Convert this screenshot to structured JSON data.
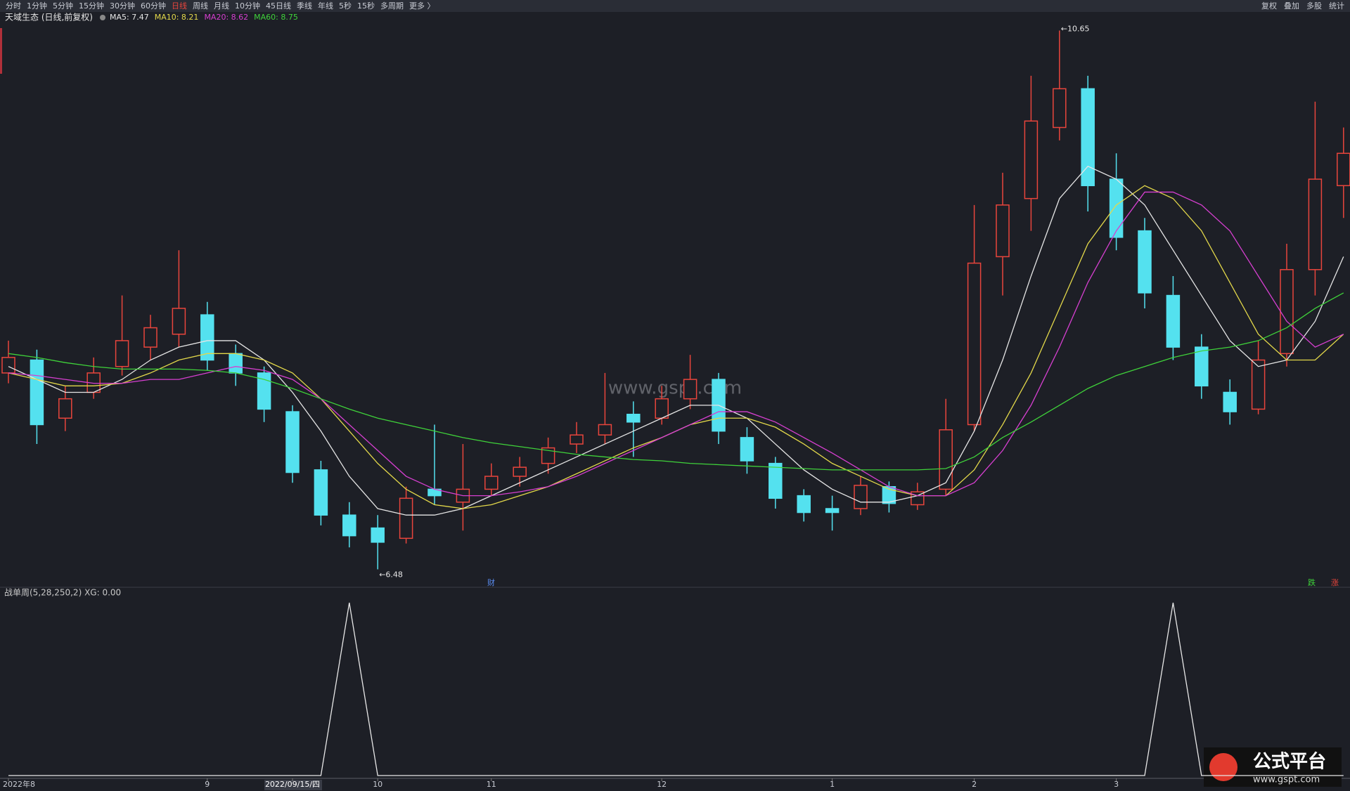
{
  "toolbar": {
    "items": [
      "分时",
      "1分钟",
      "5分钟",
      "15分钟",
      "30分钟",
      "60分钟",
      "日线",
      "周线",
      "月线",
      "10分钟",
      "45日线",
      "季线",
      "年线",
      "5秒",
      "15秒",
      "多周期",
      "更多 〉"
    ],
    "active": "日线",
    "right": [
      "复权",
      "叠加",
      "多股",
      "统计"
    ]
  },
  "chart_data": [
    {
      "type": "candlestick",
      "title": "天域生态 (日线,前复权)",
      "categories": [
        "2022年8",
        null,
        null,
        null,
        null,
        null,
        null,
        "9",
        null,
        null,
        "2022/09/15/四",
        null,
        null,
        "10",
        null,
        null,
        null,
        "11",
        null,
        null,
        null,
        null,
        null,
        "12",
        null,
        null,
        null,
        null,
        null,
        "1",
        null,
        null,
        null,
        null,
        "2",
        null,
        null,
        null,
        null,
        "3",
        null,
        null,
        null,
        null,
        null,
        null,
        null,
        null
      ],
      "candles": [
        [
          8.0,
          8.25,
          7.92,
          8.12
        ],
        [
          8.1,
          8.18,
          7.45,
          7.6
        ],
        [
          7.65,
          7.9,
          7.55,
          7.8
        ],
        [
          7.85,
          8.12,
          7.8,
          8.0
        ],
        [
          8.05,
          8.6,
          7.98,
          8.25
        ],
        [
          8.2,
          8.45,
          8.1,
          8.35
        ],
        [
          8.3,
          8.95,
          8.2,
          8.5
        ],
        [
          8.45,
          8.55,
          8.02,
          8.1
        ],
        [
          8.15,
          8.22,
          7.9,
          8.0
        ],
        [
          8.0,
          8.05,
          7.62,
          7.72
        ],
        [
          7.7,
          7.75,
          7.15,
          7.23
        ],
        [
          7.25,
          7.32,
          6.82,
          6.9
        ],
        [
          6.9,
          7.0,
          6.65,
          6.74
        ],
        [
          6.8,
          6.9,
          6.48,
          6.69
        ],
        [
          6.72,
          7.12,
          6.68,
          7.03
        ],
        [
          7.1,
          7.6,
          6.98,
          7.05
        ],
        [
          7.0,
          7.45,
          6.78,
          7.1
        ],
        [
          7.1,
          7.3,
          7.05,
          7.2
        ],
        [
          7.2,
          7.35,
          7.12,
          7.27
        ],
        [
          7.3,
          7.5,
          7.22,
          7.42
        ],
        [
          7.45,
          7.62,
          7.38,
          7.52
        ],
        [
          7.52,
          8.0,
          7.45,
          7.6
        ],
        [
          7.68,
          7.78,
          7.35,
          7.62
        ],
        [
          7.65,
          7.9,
          7.6,
          7.8
        ],
        [
          7.8,
          8.14,
          7.72,
          7.95
        ],
        [
          7.95,
          8.0,
          7.45,
          7.55
        ],
        [
          7.5,
          7.58,
          7.22,
          7.32
        ],
        [
          7.3,
          7.35,
          6.95,
          7.03
        ],
        [
          7.05,
          7.1,
          6.85,
          6.92
        ],
        [
          6.95,
          7.05,
          6.78,
          6.92
        ],
        [
          6.95,
          7.2,
          6.9,
          7.13
        ],
        [
          7.12,
          7.16,
          6.92,
          6.99
        ],
        [
          6.98,
          7.15,
          6.94,
          7.08
        ],
        [
          7.1,
          7.8,
          7.05,
          7.56
        ],
        [
          7.6,
          9.3,
          7.55,
          8.85
        ],
        [
          8.9,
          9.55,
          8.6,
          9.3
        ],
        [
          9.35,
          10.3,
          9.1,
          9.95
        ],
        [
          9.9,
          10.65,
          9.8,
          10.2
        ],
        [
          10.2,
          10.3,
          9.25,
          9.45
        ],
        [
          9.5,
          9.7,
          8.95,
          9.05
        ],
        [
          9.1,
          9.2,
          8.5,
          8.62
        ],
        [
          8.6,
          8.75,
          8.1,
          8.2
        ],
        [
          8.2,
          8.3,
          7.8,
          7.9
        ],
        [
          7.85,
          7.95,
          7.6,
          7.7
        ],
        [
          7.72,
          8.25,
          7.68,
          8.1
        ],
        [
          8.15,
          9.0,
          8.05,
          8.8
        ],
        [
          8.8,
          10.1,
          8.6,
          9.5
        ],
        [
          9.45,
          9.9,
          9.2,
          9.7
        ]
      ],
      "up_color": "#e8453c",
      "down_color": "#54e1ef",
      "series": [
        {
          "name": "MA5: 7.47",
          "color": "#e6e6e6",
          "values": [
            8.05,
            7.95,
            7.85,
            7.85,
            7.95,
            8.1,
            8.2,
            8.25,
            8.25,
            8.1,
            7.85,
            7.55,
            7.2,
            6.95,
            6.9,
            6.9,
            6.95,
            7.05,
            7.15,
            7.25,
            7.35,
            7.45,
            7.55,
            7.65,
            7.75,
            7.75,
            7.65,
            7.45,
            7.25,
            7.1,
            7.0,
            7.0,
            7.05,
            7.15,
            7.55,
            8.1,
            8.75,
            9.35,
            9.6,
            9.5,
            9.3,
            8.95,
            8.6,
            8.25,
            8.05,
            8.1,
            8.4,
            8.9
          ]
        },
        {
          "name": "MA10: 8.21",
          "color": "#e3d84a",
          "values": [
            8.0,
            7.95,
            7.9,
            7.9,
            7.92,
            8.0,
            8.1,
            8.15,
            8.15,
            8.1,
            8.0,
            7.8,
            7.55,
            7.3,
            7.1,
            6.98,
            6.95,
            6.98,
            7.05,
            7.12,
            7.22,
            7.32,
            7.42,
            7.5,
            7.6,
            7.65,
            7.65,
            7.58,
            7.45,
            7.3,
            7.2,
            7.1,
            7.05,
            7.05,
            7.25,
            7.6,
            8.0,
            8.5,
            9.0,
            9.3,
            9.45,
            9.35,
            9.1,
            8.7,
            8.3,
            8.1,
            8.1,
            8.3
          ]
        },
        {
          "name": "MA20: 8.62",
          "color": "#d63fd0",
          "values": [
            8.0,
            7.98,
            7.95,
            7.92,
            7.92,
            7.95,
            7.95,
            8.0,
            8.05,
            8.02,
            7.95,
            7.8,
            7.6,
            7.4,
            7.2,
            7.1,
            7.05,
            7.05,
            7.08,
            7.12,
            7.2,
            7.3,
            7.4,
            7.5,
            7.6,
            7.7,
            7.7,
            7.62,
            7.5,
            7.38,
            7.25,
            7.12,
            7.05,
            7.05,
            7.15,
            7.4,
            7.75,
            8.2,
            8.7,
            9.1,
            9.4,
            9.4,
            9.3,
            9.1,
            8.75,
            8.4,
            8.2,
            8.3
          ]
        },
        {
          "name": "MA60: 8.75",
          "color": "#3fd23a",
          "values": [
            8.15,
            8.12,
            8.08,
            8.05,
            8.03,
            8.03,
            8.03,
            8.02,
            8.0,
            7.95,
            7.88,
            7.8,
            7.72,
            7.65,
            7.6,
            7.55,
            7.5,
            7.46,
            7.43,
            7.4,
            7.37,
            7.35,
            7.33,
            7.32,
            7.3,
            7.29,
            7.28,
            7.27,
            7.26,
            7.25,
            7.25,
            7.25,
            7.25,
            7.26,
            7.35,
            7.5,
            7.62,
            7.75,
            7.88,
            7.98,
            8.05,
            8.12,
            8.17,
            8.2,
            8.25,
            8.35,
            8.5,
            8.62
          ]
        }
      ],
      "ylim": [
        6.39,
        10.74
      ],
      "annotations": [
        {
          "text": "←10.65",
          "index": 37,
          "value": 10.65
        },
        {
          "text": "←6.48",
          "index": 13,
          "value": 6.48
        }
      ],
      "markers": {
        "finance": "财",
        "fall": "跌",
        "rise": "涨"
      }
    },
    {
      "type": "line",
      "title": "战单周(5,28,250,2)  XG: 0.00",
      "series": [
        {
          "name": "XG",
          "color": "#e8e8e8",
          "values": [
            0,
            0,
            0,
            0,
            0,
            0,
            0,
            0,
            0,
            0,
            0,
            0,
            1,
            0,
            0,
            0,
            0,
            0,
            0,
            0,
            0,
            0,
            0,
            0,
            0,
            0,
            0,
            0,
            0,
            0,
            0,
            0,
            0,
            0,
            0,
            0,
            0,
            0,
            0,
            0,
            0,
            1,
            0,
            0,
            0,
            0,
            0,
            0
          ]
        }
      ],
      "ylim": [
        0,
        1
      ]
    }
  ],
  "watermark": "www.gspt.com",
  "logo": {
    "name": "公式平台",
    "url": "www.gspt.com"
  }
}
